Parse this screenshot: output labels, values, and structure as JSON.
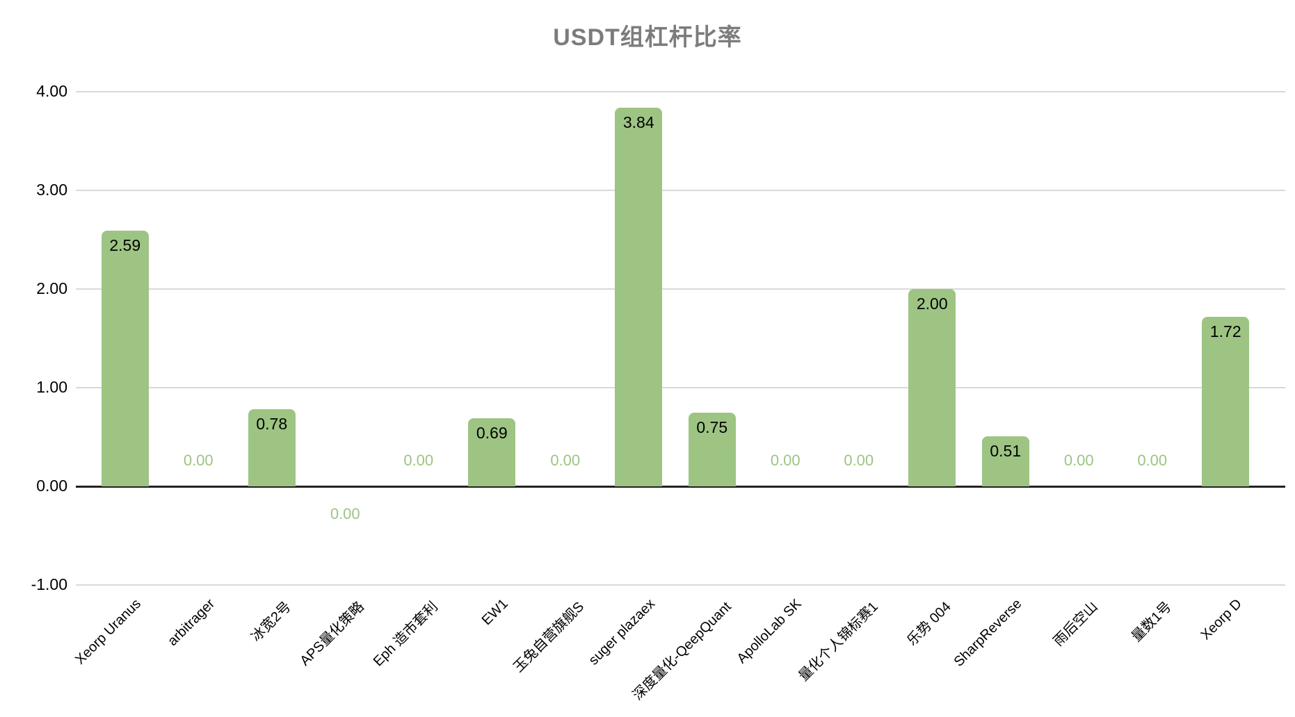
{
  "chart_data": {
    "type": "bar",
    "title": "USDT组杠杆比率",
    "categories": [
      "Xeorp Uranus",
      "arbitrager",
      "冰宽2号",
      "APS量化策略",
      "Eph 造市套利",
      "EW1",
      "玉兔自营旗舰S",
      "suger plazaex",
      "深度量化-QeepQuant",
      "ApolloLab SK",
      "量化个人锦标赛1",
      "乐势 004",
      "SharpReverse",
      "雨后空山",
      "量数1号",
      "Xeorp D"
    ],
    "values": [
      2.59,
      0.0,
      0.78,
      0.0,
      0.0,
      0.69,
      0.0,
      3.84,
      0.75,
      0.0,
      0.0,
      2.0,
      0.51,
      0.0,
      0.0,
      1.72
    ],
    "value_labels": [
      "2.59",
      "0.00",
      "0.78",
      "0.00",
      "0.00",
      "0.69",
      "0.00",
      "3.84",
      "0.75",
      "0.00",
      "0.00",
      "2.00",
      "0.51",
      "0.00",
      "0.00",
      "1.72"
    ],
    "below_axis_label_indices": [
      3
    ],
    "y_ticks": [
      {
        "label": "4.00",
        "value": 4
      },
      {
        "label": "3.00",
        "value": 3
      },
      {
        "label": "2.00",
        "value": 2
      },
      {
        "label": "1.00",
        "value": 1
      },
      {
        "label": "0.00",
        "value": 0
      },
      {
        "label": "-1.00",
        "value": -1
      }
    ],
    "ylim": [
      -1,
      4
    ],
    "xlabel": "",
    "ylabel": "",
    "grid": true,
    "legend": "none",
    "colors": {
      "bar": "#9DC483",
      "zero_value_label": "#9DC483",
      "bar_value_label": "#000000",
      "title": "#7C7C7C",
      "gridline": "#D9D9D9",
      "axis_line": "#212121",
      "background": "#FFFFFF"
    }
  }
}
